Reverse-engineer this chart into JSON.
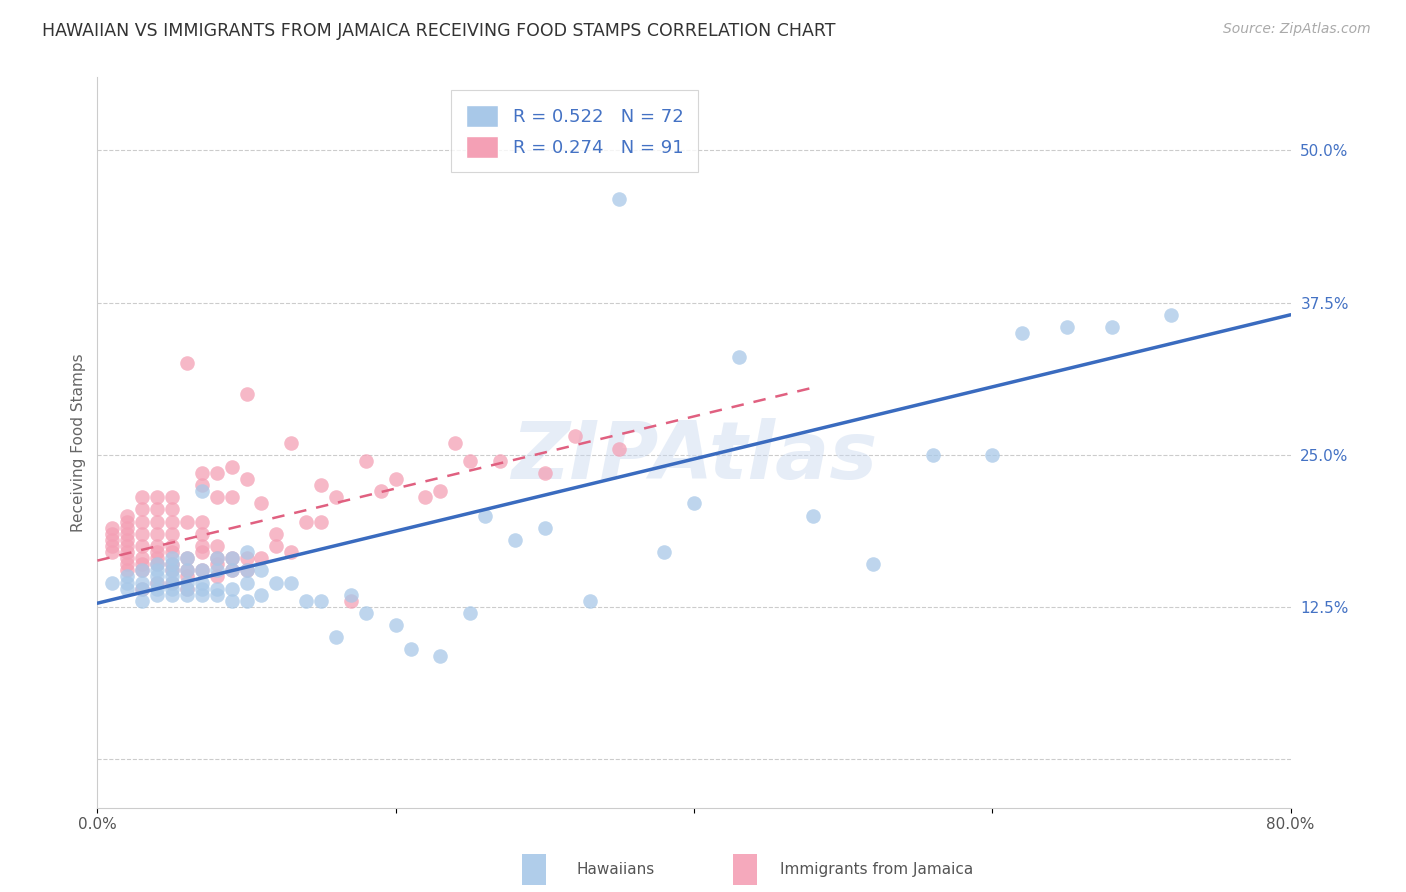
{
  "title": "HAWAIIAN VS IMMIGRANTS FROM JAMAICA RECEIVING FOOD STAMPS CORRELATION CHART",
  "source": "Source: ZipAtlas.com",
  "ylabel": "Receiving Food Stamps",
  "yticks": [
    0.0,
    0.125,
    0.25,
    0.375,
    0.5
  ],
  "ytick_labels": [
    "",
    "12.5%",
    "25.0%",
    "37.5%",
    "50.0%"
  ],
  "xmin": 0.0,
  "xmax": 0.8,
  "ymin": -0.04,
  "ymax": 0.56,
  "legend_entries": [
    {
      "label": "R = 0.522   N = 72",
      "color": "#a8c8e8"
    },
    {
      "label": "R = 0.274   N = 91",
      "color": "#f4a0b5"
    }
  ],
  "hawaiians_color": "#a8c8e8",
  "jamaicans_color": "#f4a0b5",
  "hawaiians_line_color": "#3a6bbf",
  "jamaicans_line_color": "#e06080",
  "watermark_text": "ZIPAtlas",
  "title_fontsize": 12.5,
  "source_fontsize": 10,
  "axis_label_fontsize": 11,
  "tick_label_fontsize": 11,
  "hawaiians_x": [
    0.01,
    0.02,
    0.02,
    0.02,
    0.03,
    0.03,
    0.03,
    0.03,
    0.04,
    0.04,
    0.04,
    0.04,
    0.04,
    0.04,
    0.05,
    0.05,
    0.05,
    0.05,
    0.05,
    0.05,
    0.05,
    0.06,
    0.06,
    0.06,
    0.06,
    0.06,
    0.07,
    0.07,
    0.07,
    0.07,
    0.07,
    0.08,
    0.08,
    0.08,
    0.08,
    0.09,
    0.09,
    0.09,
    0.09,
    0.1,
    0.1,
    0.1,
    0.1,
    0.11,
    0.11,
    0.12,
    0.13,
    0.14,
    0.15,
    0.16,
    0.17,
    0.18,
    0.2,
    0.21,
    0.23,
    0.25,
    0.26,
    0.28,
    0.3,
    0.33,
    0.35,
    0.38,
    0.4,
    0.43,
    0.48,
    0.52,
    0.56,
    0.6,
    0.62,
    0.65,
    0.68,
    0.72
  ],
  "hawaiians_y": [
    0.145,
    0.14,
    0.145,
    0.15,
    0.13,
    0.14,
    0.145,
    0.155,
    0.135,
    0.14,
    0.145,
    0.15,
    0.155,
    0.16,
    0.135,
    0.14,
    0.145,
    0.15,
    0.155,
    0.16,
    0.165,
    0.135,
    0.14,
    0.145,
    0.155,
    0.165,
    0.135,
    0.14,
    0.145,
    0.155,
    0.22,
    0.135,
    0.14,
    0.155,
    0.165,
    0.13,
    0.14,
    0.155,
    0.165,
    0.13,
    0.145,
    0.155,
    0.17,
    0.135,
    0.155,
    0.145,
    0.145,
    0.13,
    0.13,
    0.1,
    0.135,
    0.12,
    0.11,
    0.09,
    0.085,
    0.12,
    0.2,
    0.18,
    0.19,
    0.13,
    0.46,
    0.17,
    0.21,
    0.33,
    0.2,
    0.16,
    0.25,
    0.25,
    0.35,
    0.355,
    0.355,
    0.365
  ],
  "jamaicans_x": [
    0.01,
    0.01,
    0.01,
    0.01,
    0.01,
    0.02,
    0.02,
    0.02,
    0.02,
    0.02,
    0.02,
    0.02,
    0.02,
    0.02,
    0.02,
    0.03,
    0.03,
    0.03,
    0.03,
    0.03,
    0.03,
    0.03,
    0.03,
    0.03,
    0.04,
    0.04,
    0.04,
    0.04,
    0.04,
    0.04,
    0.04,
    0.04,
    0.04,
    0.05,
    0.05,
    0.05,
    0.05,
    0.05,
    0.05,
    0.05,
    0.05,
    0.05,
    0.06,
    0.06,
    0.06,
    0.06,
    0.06,
    0.06,
    0.07,
    0.07,
    0.07,
    0.07,
    0.07,
    0.07,
    0.07,
    0.08,
    0.08,
    0.08,
    0.08,
    0.08,
    0.08,
    0.09,
    0.09,
    0.09,
    0.09,
    0.1,
    0.1,
    0.1,
    0.1,
    0.11,
    0.11,
    0.12,
    0.12,
    0.13,
    0.13,
    0.14,
    0.15,
    0.15,
    0.16,
    0.17,
    0.18,
    0.19,
    0.2,
    0.22,
    0.23,
    0.24,
    0.25,
    0.27,
    0.3,
    0.32,
    0.35
  ],
  "jamaicans_y": [
    0.17,
    0.175,
    0.18,
    0.185,
    0.19,
    0.155,
    0.16,
    0.165,
    0.17,
    0.175,
    0.18,
    0.185,
    0.19,
    0.195,
    0.2,
    0.14,
    0.155,
    0.16,
    0.165,
    0.175,
    0.185,
    0.195,
    0.205,
    0.215,
    0.145,
    0.16,
    0.165,
    0.17,
    0.175,
    0.185,
    0.195,
    0.205,
    0.215,
    0.145,
    0.155,
    0.16,
    0.17,
    0.175,
    0.185,
    0.195,
    0.205,
    0.215,
    0.14,
    0.15,
    0.155,
    0.165,
    0.195,
    0.325,
    0.155,
    0.17,
    0.175,
    0.185,
    0.195,
    0.225,
    0.235,
    0.15,
    0.16,
    0.165,
    0.175,
    0.215,
    0.235,
    0.155,
    0.165,
    0.215,
    0.24,
    0.155,
    0.165,
    0.23,
    0.3,
    0.165,
    0.21,
    0.175,
    0.185,
    0.17,
    0.26,
    0.195,
    0.195,
    0.225,
    0.215,
    0.13,
    0.245,
    0.22,
    0.23,
    0.215,
    0.22,
    0.26,
    0.245,
    0.245,
    0.235,
    0.265,
    0.255
  ],
  "hawaiians_trend_x": [
    0.0,
    0.8
  ],
  "hawaiians_trend_y": [
    0.128,
    0.365
  ],
  "jamaicans_trend_x": [
    0.0,
    0.8
  ],
  "jamaicans_trend_y": [
    0.163,
    0.4
  ],
  "jamaicans_trend_clip_x": 0.48
}
